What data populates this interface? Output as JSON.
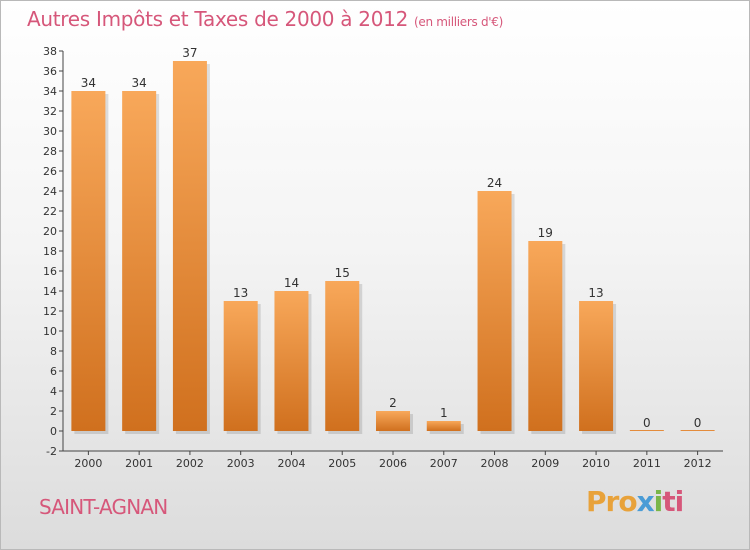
{
  "title": "Autres Impôts et Taxes de 2000 à 2012",
  "title_unit": "(en milliers d'€)",
  "commune": "SAINT-AGNAN",
  "logo": {
    "p1": "Pro",
    "p2": "x",
    "p3": "i",
    "p4": "ti"
  },
  "colors": {
    "bar_top": "#f8a85a",
    "bar_bottom": "#d0701e",
    "title": "#d6577a",
    "axis": "#444444"
  },
  "chart_data": {
    "type": "bar",
    "categories": [
      "2000",
      "2001",
      "2002",
      "2003",
      "2004",
      "2005",
      "2006",
      "2007",
      "2008",
      "2009",
      "2010",
      "2011",
      "2012"
    ],
    "values": [
      34,
      34,
      37,
      13,
      14,
      15,
      2,
      1,
      24,
      19,
      13,
      0,
      0
    ],
    "ylim": [
      -2,
      38
    ],
    "yticks": [
      -2,
      0,
      2,
      4,
      6,
      8,
      10,
      12,
      14,
      16,
      18,
      20,
      22,
      24,
      26,
      28,
      30,
      32,
      34,
      36,
      38
    ],
    "grid": false,
    "legend": "none"
  }
}
